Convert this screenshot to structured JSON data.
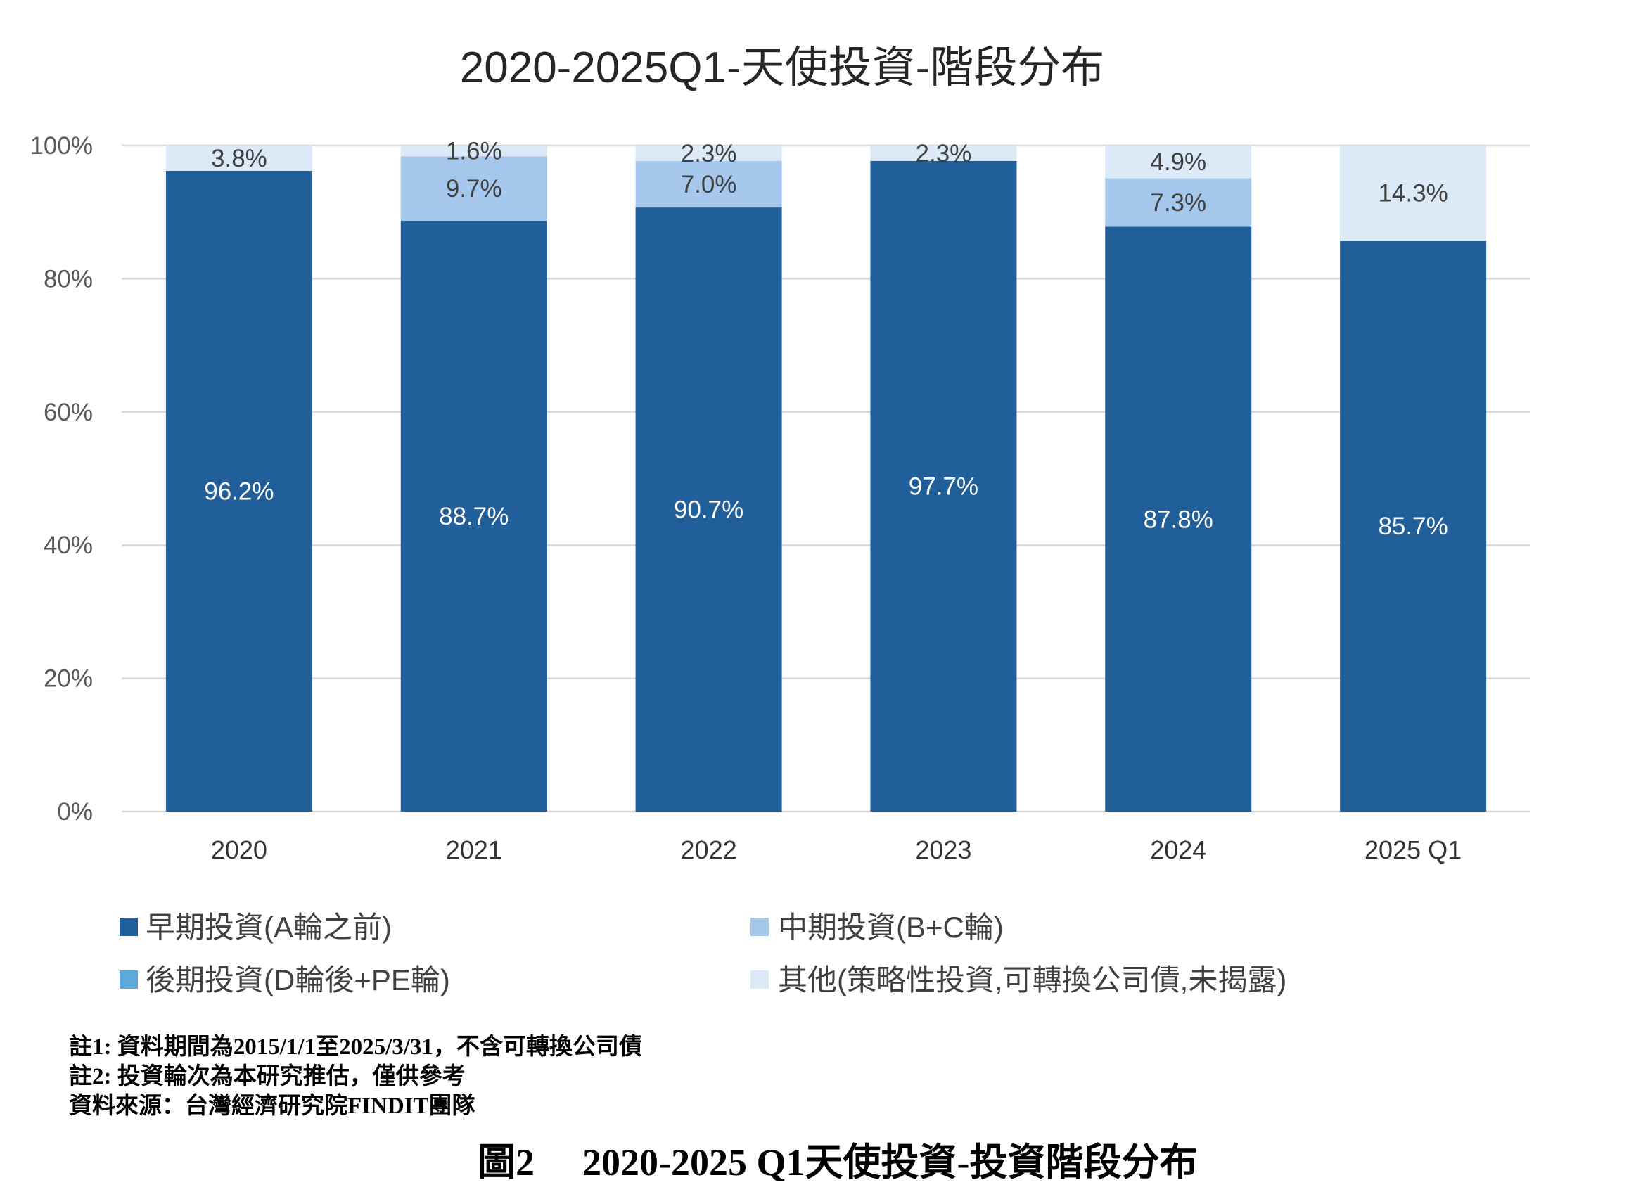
{
  "chart_data": {
    "type": "bar",
    "stacked": true,
    "title": "2020-2025Q1-天使投資-階段分布",
    "xlabel": "",
    "ylabel": "",
    "ylim": [
      0,
      100
    ],
    "yticks": [
      0,
      20,
      40,
      60,
      80,
      100
    ],
    "ytick_labels": [
      "0%",
      "20%",
      "40%",
      "60%",
      "80%",
      "100%"
    ],
    "grid": true,
    "legend": "bottom",
    "categories": [
      "2020",
      "2021",
      "2022",
      "2023",
      "2024",
      "2025 Q1"
    ],
    "series": [
      {
        "name": "早期投資(A輪之前)",
        "color": "#215F9A",
        "label_color": "#FFFFFF",
        "values": [
          96.2,
          88.7,
          90.7,
          97.7,
          87.8,
          85.7
        ]
      },
      {
        "name": "中期投資(B+C輪)",
        "color": "#A6C8EC",
        "label_color": "#404040",
        "values": [
          0,
          9.7,
          7.0,
          0,
          7.3,
          0
        ]
      },
      {
        "name": "後期投資(D輪後+PE輪)",
        "color": "#5FA9DA",
        "label_color": "#404040",
        "values": [
          0,
          0,
          0,
          0,
          0,
          0
        ]
      },
      {
        "name": "其他(策略性投資,可轉換公司債,未揭露)",
        "color": "#DCE9F7",
        "label_color": "#404040",
        "values": [
          3.8,
          1.6,
          2.3,
          2.3,
          4.9,
          14.3
        ]
      }
    ]
  },
  "notes": [
    "註1: 資料期間為2015/1/1至2025/3/31，不含可轉換公司債",
    "註2: 投資輪次為本研究推估，僅供參考",
    "資料來源：台灣經濟研究院FINDIT團隊"
  ],
  "caption": {
    "figure_no": "圖2",
    "text": "2020-2025 Q1天使投資-投資階段分布"
  }
}
